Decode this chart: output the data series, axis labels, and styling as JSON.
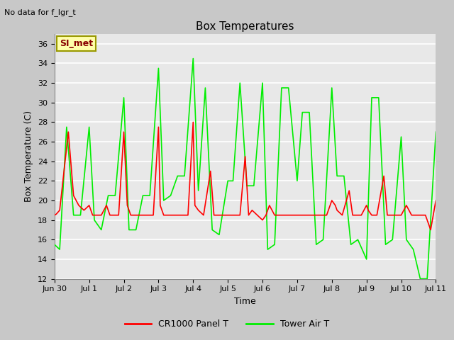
{
  "title": "Box Temperatures",
  "no_data_text": "No data for f_lgr_t",
  "annotation_text": "SI_met",
  "xlabel": "Time",
  "ylabel": "Box Temperature (C)",
  "ylim": [
    12,
    37
  ],
  "yticks": [
    12,
    14,
    16,
    18,
    20,
    22,
    24,
    26,
    28,
    30,
    32,
    34,
    36
  ],
  "legend_labels": [
    "CR1000 Panel T",
    "Tower Air T"
  ],
  "legend_colors": [
    "#ff0000",
    "#00ee00"
  ],
  "fig_bg_color": "#c8c8c8",
  "plot_bg": "#e8e8e8",
  "grid_color": "#ffffff",
  "title_fontsize": 11,
  "annotation_bg": "#ffffaa",
  "annotation_border": "#999900",
  "annotation_text_color": "#880000",
  "x_start_day": 0,
  "x_end_day": 11,
  "xtick_positions": [
    0,
    1,
    2,
    3,
    4,
    5,
    6,
    7,
    8,
    9,
    10,
    11
  ],
  "xtick_labels": [
    "Jun 30",
    "Jul 1",
    "Jul 2",
    "Jul 3",
    "Jul 4",
    "Jul 5",
    "Jul 6",
    "Jul 7",
    "Jul 8",
    "Jul 9",
    "Jul 10",
    "Jul 11"
  ],
  "red_x": [
    0.0,
    0.05,
    0.15,
    0.4,
    0.55,
    0.7,
    0.85,
    1.0,
    1.1,
    1.2,
    1.35,
    1.5,
    1.6,
    1.7,
    1.85,
    2.0,
    2.1,
    2.2,
    2.35,
    2.5,
    2.6,
    2.7,
    2.85,
    3.0,
    3.05,
    3.15,
    3.3,
    3.5,
    3.6,
    3.7,
    3.85,
    4.0,
    4.05,
    4.15,
    4.3,
    4.5,
    4.6,
    4.7,
    4.85,
    5.0,
    5.1,
    5.2,
    5.35,
    5.5,
    5.6,
    5.7,
    5.85,
    6.0,
    6.1,
    6.2,
    6.35,
    6.5,
    6.6,
    6.7,
    6.85,
    7.0,
    7.15,
    7.3,
    7.5,
    7.6,
    7.7,
    7.85,
    8.0,
    8.1,
    8.15,
    8.3,
    8.5,
    8.6,
    8.7,
    8.85,
    9.0,
    9.05,
    9.15,
    9.3,
    9.5,
    9.6,
    9.7,
    9.85,
    10.0,
    10.15,
    10.3,
    10.5,
    10.6,
    10.7,
    10.85,
    11.0
  ],
  "red_y": [
    18.5,
    18.6,
    19.0,
    27.0,
    20.5,
    19.5,
    19.0,
    19.5,
    18.5,
    18.5,
    18.5,
    19.5,
    18.5,
    18.5,
    18.5,
    27.0,
    19.5,
    18.5,
    18.5,
    18.5,
    18.5,
    18.5,
    18.5,
    27.5,
    19.5,
    18.5,
    18.5,
    18.5,
    18.5,
    18.5,
    18.5,
    28.0,
    19.5,
    19.0,
    18.5,
    23.0,
    18.5,
    18.5,
    18.5,
    18.5,
    18.5,
    18.5,
    18.5,
    24.5,
    18.5,
    19.0,
    18.5,
    18.0,
    18.5,
    19.5,
    18.5,
    18.5,
    18.5,
    18.5,
    18.5,
    18.5,
    18.5,
    18.5,
    18.5,
    18.5,
    18.5,
    18.5,
    20.0,
    19.5,
    19.0,
    18.5,
    21.0,
    18.5,
    18.5,
    18.5,
    19.5,
    19.0,
    18.5,
    18.5,
    22.5,
    18.5,
    18.5,
    18.5,
    18.5,
    19.5,
    18.5,
    18.5,
    18.5,
    18.5,
    17.0,
    20.0
  ],
  "green_x": [
    0.0,
    0.15,
    0.35,
    0.55,
    0.75,
    1.0,
    1.15,
    1.35,
    1.55,
    1.75,
    2.0,
    2.15,
    2.35,
    2.55,
    2.75,
    3.0,
    3.15,
    3.35,
    3.55,
    3.75,
    4.0,
    4.15,
    4.35,
    4.55,
    4.75,
    5.0,
    5.15,
    5.35,
    5.55,
    5.75,
    6.0,
    6.15,
    6.35,
    6.55,
    6.75,
    7.0,
    7.15,
    7.35,
    7.55,
    7.75,
    8.0,
    8.15,
    8.35,
    8.55,
    8.75,
    9.0,
    9.15,
    9.35,
    9.55,
    9.75,
    10.0,
    10.15,
    10.35,
    10.55,
    10.75,
    11.0
  ],
  "green_y": [
    15.5,
    15.0,
    27.5,
    18.5,
    18.5,
    27.5,
    18.0,
    17.0,
    20.5,
    20.5,
    30.5,
    17.0,
    17.0,
    20.5,
    20.5,
    33.5,
    20.0,
    20.5,
    22.5,
    22.5,
    34.5,
    21.0,
    31.5,
    17.0,
    16.5,
    22.0,
    22.0,
    32.0,
    21.5,
    21.5,
    32.0,
    15.0,
    15.5,
    31.5,
    31.5,
    22.0,
    29.0,
    29.0,
    15.5,
    16.0,
    31.5,
    22.5,
    22.5,
    15.5,
    16.0,
    14.0,
    30.5,
    30.5,
    15.5,
    16.0,
    26.5,
    16.0,
    15.0,
    12.0,
    12.0,
    27.0
  ]
}
